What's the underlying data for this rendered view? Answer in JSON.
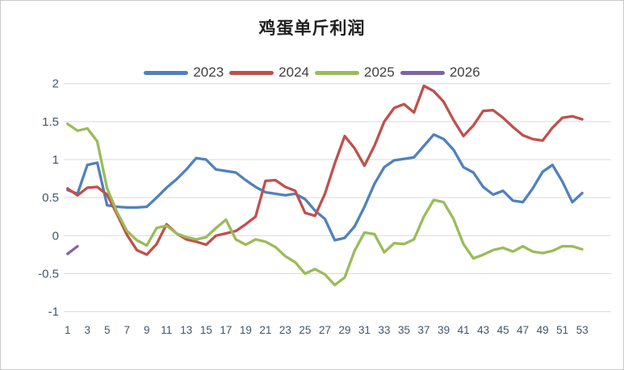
{
  "title": "鸡蛋单斤利润",
  "chart_data": {
    "type": "line",
    "x_unit": "week",
    "xticks": [
      1,
      3,
      5,
      7,
      9,
      11,
      13,
      15,
      17,
      19,
      21,
      23,
      25,
      27,
      29,
      31,
      33,
      35,
      37,
      39,
      41,
      43,
      45,
      47,
      49,
      51,
      53
    ],
    "yticks": [
      "2",
      "1.5",
      "1",
      "0.5",
      "0",
      "-0.5",
      "-1"
    ],
    "ylim": [
      -1,
      2
    ],
    "xlim": [
      1,
      53
    ],
    "grid": "horizontal",
    "legend_position": "top",
    "axis_label_color": "#44546A",
    "gridline_color": "#D9D9D9",
    "series": [
      {
        "name": "2023",
        "color": "#4F81BD",
        "values": [
          0.6,
          0.55,
          0.93,
          0.96,
          0.4,
          0.38,
          0.37,
          0.37,
          0.38,
          0.5,
          0.63,
          0.74,
          0.87,
          1.02,
          1.0,
          0.87,
          0.85,
          0.83,
          0.73,
          0.64,
          0.57,
          0.55,
          0.53,
          0.55,
          0.48,
          0.33,
          0.22,
          -0.06,
          -0.03,
          0.12,
          0.38,
          0.68,
          0.9,
          0.99,
          1.01,
          1.03,
          1.18,
          1.33,
          1.27,
          1.13,
          0.9,
          0.83,
          0.64,
          0.54,
          0.59,
          0.46,
          0.44,
          0.62,
          0.84,
          0.93,
          0.71,
          0.44,
          0.56
        ]
      },
      {
        "name": "2024",
        "color": "#C0504D",
        "values": [
          0.62,
          0.53,
          0.63,
          0.64,
          0.54,
          0.28,
          0.01,
          -0.19,
          -0.25,
          -0.11,
          0.15,
          0.03,
          -0.05,
          -0.08,
          -0.12,
          0.0,
          0.03,
          0.06,
          0.15,
          0.25,
          0.72,
          0.73,
          0.64,
          0.59,
          0.3,
          0.26,
          0.55,
          0.95,
          1.31,
          1.15,
          0.92,
          1.18,
          1.5,
          1.68,
          1.73,
          1.62,
          1.97,
          1.9,
          1.76,
          1.52,
          1.31,
          1.45,
          1.64,
          1.65,
          1.55,
          1.43,
          1.32,
          1.27,
          1.25,
          1.42,
          1.55,
          1.57,
          1.53
        ]
      },
      {
        "name": "2025",
        "color": "#9BBB59",
        "values": [
          1.47,
          1.38,
          1.41,
          1.24,
          0.62,
          0.31,
          0.06,
          -0.06,
          -0.13,
          0.1,
          0.13,
          0.03,
          -0.02,
          -0.05,
          -0.02,
          0.1,
          0.21,
          -0.05,
          -0.12,
          -0.05,
          -0.08,
          -0.15,
          -0.27,
          -0.35,
          -0.5,
          -0.44,
          -0.51,
          -0.65,
          -0.55,
          -0.2,
          0.04,
          0.02,
          -0.22,
          -0.1,
          -0.11,
          -0.05,
          0.25,
          0.47,
          0.44,
          0.22,
          -0.11,
          -0.3,
          -0.25,
          -0.19,
          -0.16,
          -0.21,
          -0.14,
          -0.21,
          -0.23,
          -0.2,
          -0.14,
          -0.14,
          -0.18
        ]
      },
      {
        "name": "2026",
        "color": "#8064A2",
        "values": [
          -0.24,
          -0.14
        ]
      }
    ]
  }
}
